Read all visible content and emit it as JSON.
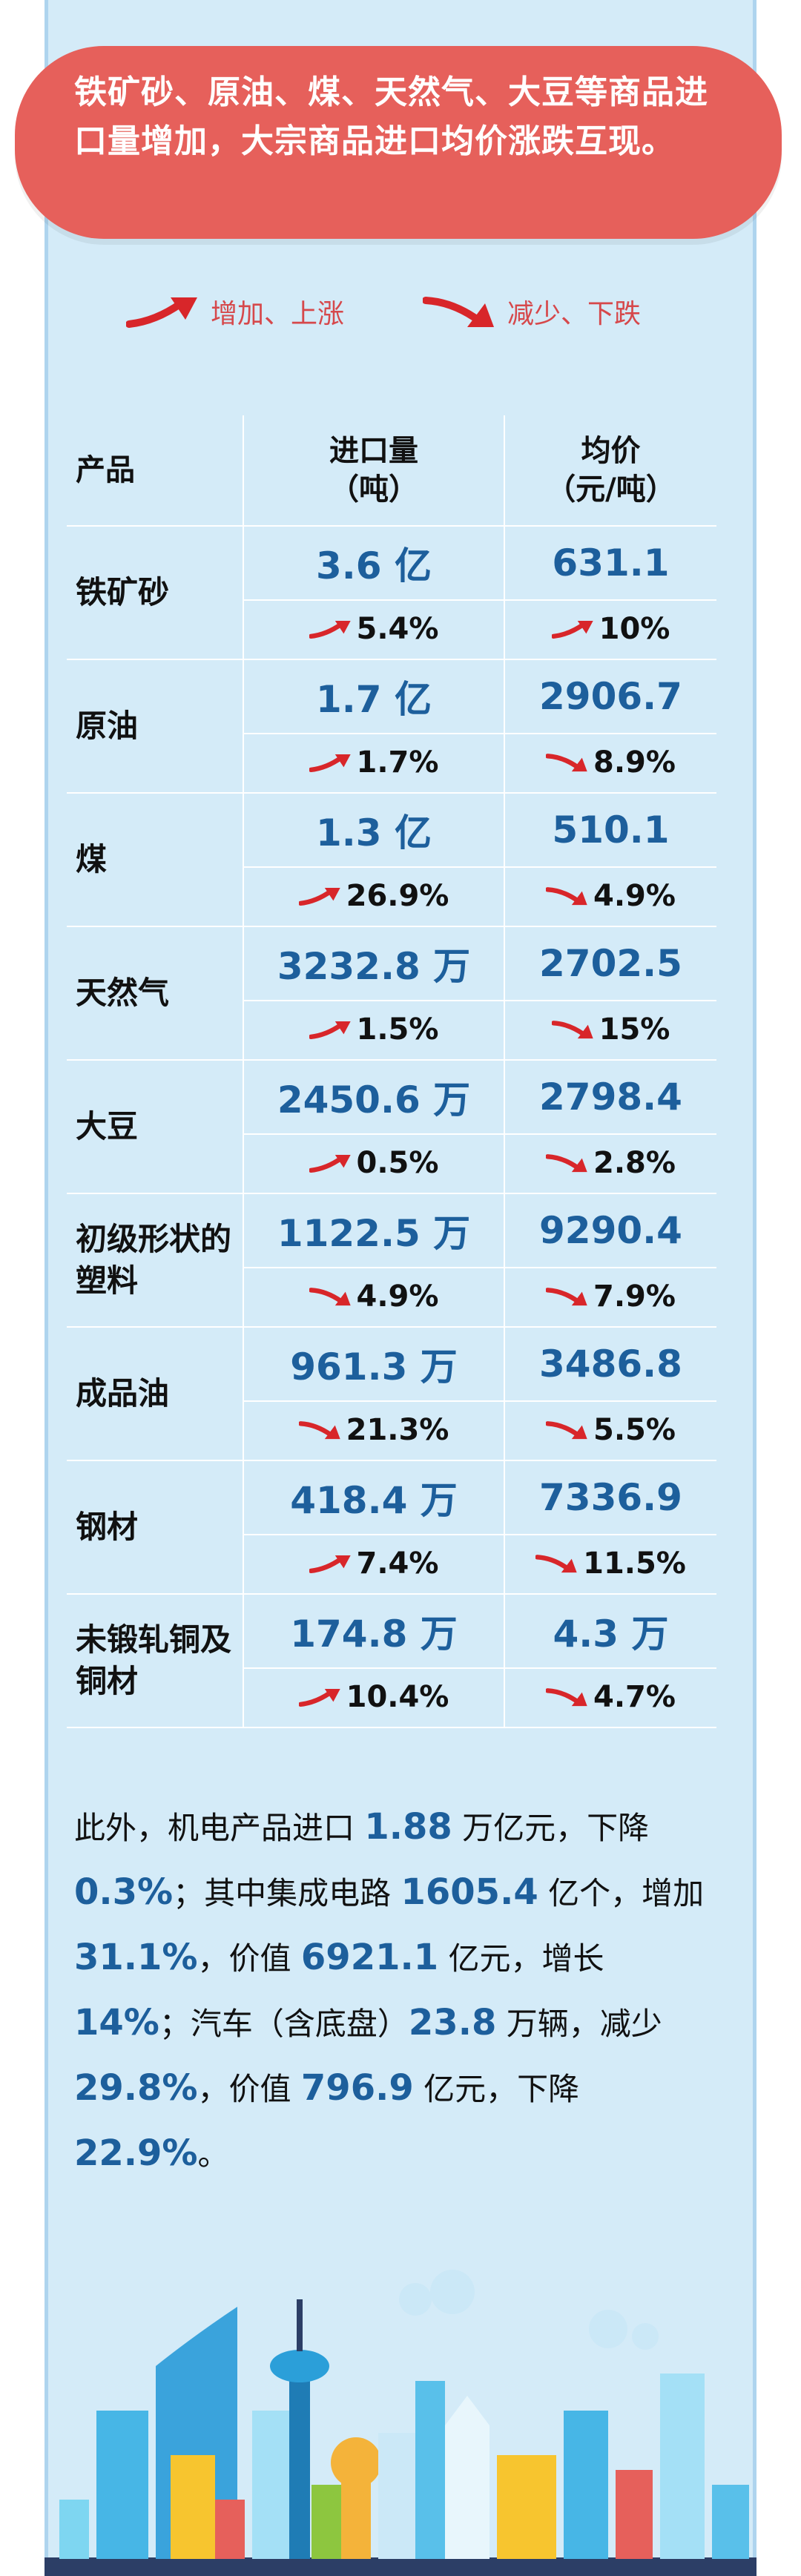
{
  "banner": {
    "text": "铁矿砂、原油、煤、天然气、大豆等商品进口量增加，大宗商品进口均价涨跌互现。"
  },
  "legend": {
    "up_label": "增加、上涨",
    "down_label": "减少、下跌"
  },
  "table": {
    "headers": {
      "product": "产品",
      "volume": "进口量\n（吨）",
      "price": "均价\n（元/吨）"
    },
    "rows": [
      {
        "name": "铁矿砂",
        "volume": "3.6 亿",
        "price": "631.1",
        "volume_dir": "up",
        "volume_change": "5.4%",
        "price_dir": "up",
        "price_change": "10%"
      },
      {
        "name": "原油",
        "volume": "1.7 亿",
        "price": "2906.7",
        "volume_dir": "up",
        "volume_change": "1.7%",
        "price_dir": "down",
        "price_change": "8.9%"
      },
      {
        "name": "煤",
        "volume": "1.3 亿",
        "price": "510.1",
        "volume_dir": "up",
        "volume_change": "26.9%",
        "price_dir": "down",
        "price_change": "4.9%"
      },
      {
        "name": "天然气",
        "volume": "3232.8 万",
        "price": "2702.5",
        "volume_dir": "up",
        "volume_change": "1.5%",
        "price_dir": "down",
        "price_change": "15%"
      },
      {
        "name": "大豆",
        "volume": "2450.6 万",
        "price": "2798.4",
        "volume_dir": "up",
        "volume_change": "0.5%",
        "price_dir": "down",
        "price_change": "2.8%"
      },
      {
        "name": "初级形状的塑料",
        "volume": "1122.5 万",
        "price": "9290.4",
        "volume_dir": "down",
        "volume_change": "4.9%",
        "price_dir": "down",
        "price_change": "7.9%"
      },
      {
        "name": "成品油",
        "volume": "961.3 万",
        "price": "3486.8",
        "volume_dir": "down",
        "volume_change": "21.3%",
        "price_dir": "down",
        "price_change": "5.5%"
      },
      {
        "name": "钢材",
        "volume": "418.4 万",
        "price": "7336.9",
        "volume_dir": "up",
        "volume_change": "7.4%",
        "price_dir": "down",
        "price_change": "11.5%"
      },
      {
        "name": "未锻轧铜及铜材",
        "volume": "174.8 万",
        "price": "4.3 万",
        "volume_dir": "up",
        "volume_change": "10.4%",
        "price_dir": "down",
        "price_change": "4.7%"
      }
    ]
  },
  "note": {
    "segments": [
      {
        "t": "此外，机电产品进口 ",
        "hl": false
      },
      {
        "t": "1.88",
        "hl": true
      },
      {
        "t": " 万亿元，下降 ",
        "hl": false
      },
      {
        "t": "0.3%",
        "hl": true
      },
      {
        "t": "；其中集成电路 ",
        "hl": false
      },
      {
        "t": "1605.4",
        "hl": true
      },
      {
        "t": " 亿个，增加 ",
        "hl": false
      },
      {
        "t": "31.1%",
        "hl": true
      },
      {
        "t": "，价值 ",
        "hl": false
      },
      {
        "t": "6921.1",
        "hl": true
      },
      {
        "t": " 亿元，增长 ",
        "hl": false
      },
      {
        "t": "14%",
        "hl": true
      },
      {
        "t": "；汽车（含底盘）",
        "hl": false
      },
      {
        "t": "23.8",
        "hl": true
      },
      {
        "t": " 万辆，减少 ",
        "hl": false
      },
      {
        "t": "29.8%",
        "hl": true
      },
      {
        "t": "，价值 ",
        "hl": false
      },
      {
        "t": "796.9",
        "hl": true
      },
      {
        "t": " 亿元，下降 ",
        "hl": false
      },
      {
        "t": "22.9%",
        "hl": true
      },
      {
        "t": "。",
        "hl": false
      }
    ]
  },
  "colors": {
    "accent_red": "#e6605b",
    "value_blue": "#1d5f9c",
    "panel_bg": "#d4ebf8"
  },
  "icons": {
    "up": "up-trend-arrow-icon",
    "down": "down-trend-arrow-icon"
  }
}
